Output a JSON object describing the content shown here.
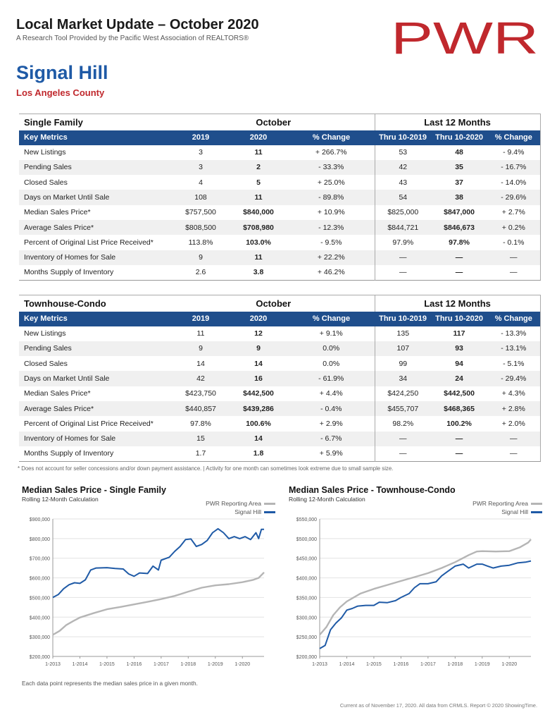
{
  "header": {
    "title": "Local Market Update – October 2020",
    "subtitle": "A Research Tool Provided by the Pacific West Association of REALTORS®",
    "logo_text": "PWR",
    "logo_color": "#c0282d",
    "city": "Signal Hill",
    "county": "Los Angeles County"
  },
  "columns": {
    "metric": "Key Metrics",
    "y2019": "2019",
    "y2020": "2020",
    "change": "% Change",
    "thru2019": "Thru 10-2019",
    "thru2020": "Thru 10-2020",
    "change12": "% Change",
    "group_month": "October",
    "group_12": "Last 12 Months"
  },
  "single_family": {
    "label": "Single Family",
    "rows": [
      {
        "metric": "New Listings",
        "v2019": "3",
        "v2020": "11",
        "chg": "+ 266.7%",
        "t2019": "53",
        "t2020": "48",
        "chg12": "- 9.4%"
      },
      {
        "metric": "Pending Sales",
        "v2019": "3",
        "v2020": "2",
        "chg": "- 33.3%",
        "t2019": "42",
        "t2020": "35",
        "chg12": "- 16.7%"
      },
      {
        "metric": "Closed Sales",
        "v2019": "4",
        "v2020": "5",
        "chg": "+ 25.0%",
        "t2019": "43",
        "t2020": "37",
        "chg12": "- 14.0%"
      },
      {
        "metric": "Days on Market Until Sale",
        "v2019": "108",
        "v2020": "11",
        "chg": "- 89.8%",
        "t2019": "54",
        "t2020": "38",
        "chg12": "- 29.6%"
      },
      {
        "metric": "Median Sales Price*",
        "v2019": "$757,500",
        "v2020": "$840,000",
        "chg": "+ 10.9%",
        "t2019": "$825,000",
        "t2020": "$847,000",
        "chg12": "+ 2.7%"
      },
      {
        "metric": "Average Sales Price*",
        "v2019": "$808,500",
        "v2020": "$708,980",
        "chg": "- 12.3%",
        "t2019": "$844,721",
        "t2020": "$846,673",
        "chg12": "+ 0.2%"
      },
      {
        "metric": "Percent of Original List Price Received*",
        "v2019": "113.8%",
        "v2020": "103.0%",
        "chg": "- 9.5%",
        "t2019": "97.9%",
        "t2020": "97.8%",
        "chg12": "- 0.1%"
      },
      {
        "metric": "Inventory of Homes for Sale",
        "v2019": "9",
        "v2020": "11",
        "chg": "+ 22.2%",
        "t2019": "—",
        "t2020": "—",
        "chg12": "—"
      },
      {
        "metric": "Months Supply of Inventory",
        "v2019": "2.6",
        "v2020": "3.8",
        "chg": "+ 46.2%",
        "t2019": "—",
        "t2020": "—",
        "chg12": "—"
      }
    ]
  },
  "townhouse_condo": {
    "label": "Townhouse-Condo",
    "rows": [
      {
        "metric": "New Listings",
        "v2019": "11",
        "v2020": "12",
        "chg": "+ 9.1%",
        "t2019": "135",
        "t2020": "117",
        "chg12": "- 13.3%"
      },
      {
        "metric": "Pending Sales",
        "v2019": "9",
        "v2020": "9",
        "chg": "0.0%",
        "t2019": "107",
        "t2020": "93",
        "chg12": "- 13.1%"
      },
      {
        "metric": "Closed Sales",
        "v2019": "14",
        "v2020": "14",
        "chg": "0.0%",
        "t2019": "99",
        "t2020": "94",
        "chg12": "- 5.1%"
      },
      {
        "metric": "Days on Market Until Sale",
        "v2019": "42",
        "v2020": "16",
        "chg": "- 61.9%",
        "t2019": "34",
        "t2020": "24",
        "chg12": "- 29.4%"
      },
      {
        "metric": "Median Sales Price*",
        "v2019": "$423,750",
        "v2020": "$442,500",
        "chg": "+ 4.4%",
        "t2019": "$424,250",
        "t2020": "$442,500",
        "chg12": "+ 4.3%"
      },
      {
        "metric": "Average Sales Price*",
        "v2019": "$440,857",
        "v2020": "$439,286",
        "chg": "- 0.4%",
        "t2019": "$455,707",
        "t2020": "$468,365",
        "chg12": "+ 2.8%"
      },
      {
        "metric": "Percent of Original List Price Received*",
        "v2019": "97.8%",
        "v2020": "100.6%",
        "chg": "+ 2.9%",
        "t2019": "98.2%",
        "t2020": "100.2%",
        "chg12": "+ 2.0%"
      },
      {
        "metric": "Inventory of Homes for Sale",
        "v2019": "15",
        "v2020": "14",
        "chg": "- 6.7%",
        "t2019": "—",
        "t2020": "—",
        "chg12": "—"
      },
      {
        "metric": "Months Supply of Inventory",
        "v2019": "1.7",
        "v2020": "1.8",
        "chg": "+ 5.9%",
        "t2019": "—",
        "t2020": "—",
        "chg12": "—"
      }
    ]
  },
  "footnote": "* Does not account for seller concessions and/or down payment assistance. | Activity for one month can sometimes look extreme due to small sample size.",
  "chart_data": [
    {
      "type": "line",
      "title": "Median Sales Price - Single Family",
      "subtitle": "Rolling 12-Month Calculation",
      "x_ticks": [
        "1-2013",
        "1-2014",
        "1-2015",
        "1-2016",
        "1-2017",
        "1-2018",
        "1-2019",
        "1-2020"
      ],
      "y_ticks": [
        "$200,000",
        "$300,000",
        "$400,000",
        "$500,000",
        "$600,000",
        "$700,000",
        "$800,000",
        "$900,000"
      ],
      "ylim": [
        200000,
        900000
      ],
      "legend_placement": "top-right",
      "series": [
        {
          "name": "PWR Reporting Area",
          "color": "#b5b5b5",
          "points": [
            [
              2013.0,
              310000
            ],
            [
              2013.25,
              330000
            ],
            [
              2013.5,
              360000
            ],
            [
              2013.75,
              380000
            ],
            [
              2014.0,
              398000
            ],
            [
              2014.5,
              420000
            ],
            [
              2015.0,
              440000
            ],
            [
              2015.5,
              452000
            ],
            [
              2016.0,
              465000
            ],
            [
              2016.5,
              478000
            ],
            [
              2017.0,
              492000
            ],
            [
              2017.5,
              508000
            ],
            [
              2018.0,
              530000
            ],
            [
              2018.5,
              550000
            ],
            [
              2019.0,
              562000
            ],
            [
              2019.5,
              568000
            ],
            [
              2020.0,
              578000
            ],
            [
              2020.4,
              590000
            ],
            [
              2020.6,
              600000
            ],
            [
              2020.8,
              628000
            ]
          ]
        },
        {
          "name": "Signal Hill",
          "color": "#1f5aa6",
          "points": [
            [
              2013.0,
              500000
            ],
            [
              2013.2,
              515000
            ],
            [
              2013.4,
              545000
            ],
            [
              2013.6,
              565000
            ],
            [
              2013.8,
              575000
            ],
            [
              2014.0,
              572000
            ],
            [
              2014.2,
              590000
            ],
            [
              2014.4,
              640000
            ],
            [
              2014.6,
              650000
            ],
            [
              2015.0,
              652000
            ],
            [
              2015.3,
              648000
            ],
            [
              2015.6,
              645000
            ],
            [
              2015.8,
              620000
            ],
            [
              2016.0,
              608000
            ],
            [
              2016.2,
              625000
            ],
            [
              2016.5,
              622000
            ],
            [
              2016.7,
              660000
            ],
            [
              2016.9,
              640000
            ],
            [
              2017.0,
              690000
            ],
            [
              2017.3,
              705000
            ],
            [
              2017.5,
              735000
            ],
            [
              2017.7,
              760000
            ],
            [
              2017.9,
              795000
            ],
            [
              2018.1,
              798000
            ],
            [
              2018.3,
              760000
            ],
            [
              2018.5,
              770000
            ],
            [
              2018.7,
              790000
            ],
            [
              2018.9,
              830000
            ],
            [
              2019.1,
              850000
            ],
            [
              2019.3,
              830000
            ],
            [
              2019.5,
              800000
            ],
            [
              2019.7,
              810000
            ],
            [
              2019.9,
              800000
            ],
            [
              2020.1,
              810000
            ],
            [
              2020.3,
              795000
            ],
            [
              2020.5,
              830000
            ],
            [
              2020.6,
              800000
            ],
            [
              2020.7,
              847000
            ],
            [
              2020.8,
              847000
            ]
          ]
        }
      ]
    },
    {
      "type": "line",
      "title": "Median Sales Price - Townhouse-Condo",
      "subtitle": "Rolling 12-Month Calculation",
      "x_ticks": [
        "1-2013",
        "1-2014",
        "1-2015",
        "1-2016",
        "1-2017",
        "1-2018",
        "1-2019",
        "1-2020"
      ],
      "y_ticks": [
        "$200,000",
        "$250,000",
        "$300,000",
        "$350,000",
        "$400,000",
        "$450,000",
        "$500,000",
        "$550,000"
      ],
      "ylim": [
        200000,
        550000
      ],
      "legend_placement": "top-right",
      "series": [
        {
          "name": "PWR Reporting Area",
          "color": "#b5b5b5",
          "points": [
            [
              2013.0,
              255000
            ],
            [
              2013.25,
              275000
            ],
            [
              2013.5,
              305000
            ],
            [
              2013.75,
              325000
            ],
            [
              2014.0,
              340000
            ],
            [
              2014.5,
              360000
            ],
            [
              2015.0,
              372000
            ],
            [
              2015.5,
              382000
            ],
            [
              2016.0,
              392000
            ],
            [
              2016.5,
              402000
            ],
            [
              2017.0,
              412000
            ],
            [
              2017.5,
              425000
            ],
            [
              2018.0,
              440000
            ],
            [
              2018.5,
              458000
            ],
            [
              2018.8,
              467000
            ],
            [
              2019.0,
              468000
            ],
            [
              2019.5,
              467000
            ],
            [
              2020.0,
              468000
            ],
            [
              2020.4,
              478000
            ],
            [
              2020.7,
              490000
            ],
            [
              2020.8,
              498000
            ]
          ]
        },
        {
          "name": "Signal Hill",
          "color": "#1f5aa6",
          "points": [
            [
              2013.0,
              220000
            ],
            [
              2013.2,
              228000
            ],
            [
              2013.4,
              268000
            ],
            [
              2013.6,
              285000
            ],
            [
              2013.8,
              298000
            ],
            [
              2014.0,
              318000
            ],
            [
              2014.2,
              322000
            ],
            [
              2014.4,
              328000
            ],
            [
              2014.7,
              330000
            ],
            [
              2015.0,
              330000
            ],
            [
              2015.2,
              338000
            ],
            [
              2015.5,
              337000
            ],
            [
              2015.8,
              342000
            ],
            [
              2016.0,
              350000
            ],
            [
              2016.3,
              360000
            ],
            [
              2016.5,
              375000
            ],
            [
              2016.7,
              385000
            ],
            [
              2017.0,
              385000
            ],
            [
              2017.3,
              390000
            ],
            [
              2017.5,
              405000
            ],
            [
              2017.8,
              420000
            ],
            [
              2018.0,
              430000
            ],
            [
              2018.3,
              435000
            ],
            [
              2018.5,
              425000
            ],
            [
              2018.8,
              435000
            ],
            [
              2019.0,
              435000
            ],
            [
              2019.2,
              430000
            ],
            [
              2019.4,
              425000
            ],
            [
              2019.7,
              430000
            ],
            [
              2020.0,
              432000
            ],
            [
              2020.3,
              438000
            ],
            [
              2020.6,
              440000
            ],
            [
              2020.8,
              443000
            ]
          ]
        }
      ]
    }
  ],
  "chart_footnote": "Each data point represents the median sales price in a given month.",
  "footer": "Current as of November 17, 2020. All data from CRMLS. Report © 2020 ShowingTime."
}
